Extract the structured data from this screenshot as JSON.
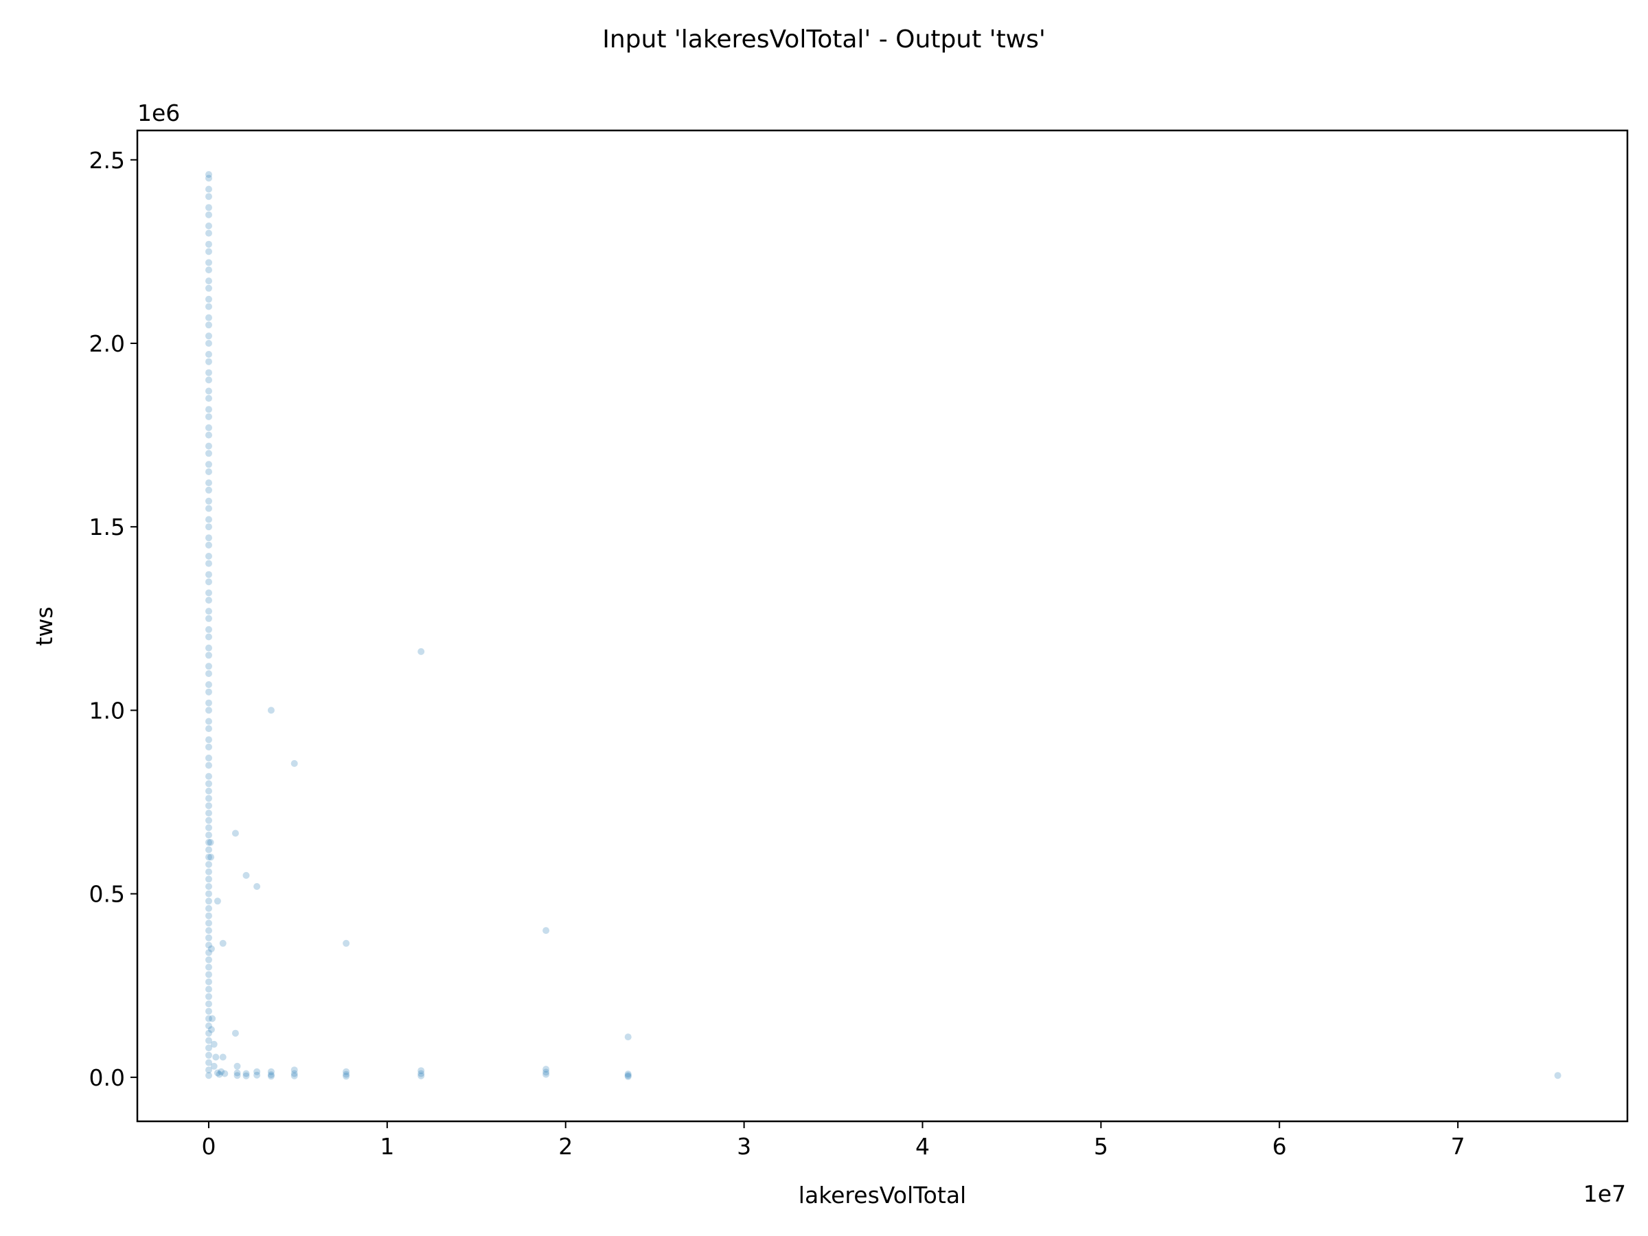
{
  "chart_data": {
    "type": "scatter",
    "title": "Input 'lakeresVolTotal' - Output 'tws'",
    "xlabel": "lakeresVolTotal",
    "ylabel": "tws",
    "x_offset_label": "1e7",
    "y_offset_label": "1e6",
    "xlim": [
      -4000000,
      79500000
    ],
    "ylim": [
      -120000,
      2580000
    ],
    "xticks": [
      0,
      10000000,
      20000000,
      30000000,
      40000000,
      50000000,
      60000000,
      70000000
    ],
    "xtick_labels": [
      "0",
      "1",
      "2",
      "3",
      "4",
      "5",
      "6",
      "7"
    ],
    "yticks": [
      0,
      500000,
      1000000,
      1500000,
      2000000,
      2500000
    ],
    "ytick_labels": [
      "0.0",
      "0.5",
      "1.0",
      "1.5",
      "2.0",
      "2.5"
    ],
    "grid": false,
    "marker_color": "#1f77b4",
    "marker_alpha": 0.25,
    "series": [
      {
        "points": [
          [
            0,
            2460000
          ],
          [
            0,
            2450000
          ],
          [
            0,
            2420000
          ],
          [
            0,
            2400000
          ],
          [
            0,
            2370000
          ],
          [
            0,
            2350000
          ],
          [
            0,
            2320000
          ],
          [
            0,
            2300000
          ],
          [
            0,
            2270000
          ],
          [
            0,
            2250000
          ],
          [
            0,
            2220000
          ],
          [
            0,
            2200000
          ],
          [
            0,
            2170000
          ],
          [
            0,
            2150000
          ],
          [
            0,
            2120000
          ],
          [
            0,
            2100000
          ],
          [
            0,
            2070000
          ],
          [
            0,
            2050000
          ],
          [
            0,
            2020000
          ],
          [
            0,
            2000000
          ],
          [
            0,
            1970000
          ],
          [
            0,
            1950000
          ],
          [
            0,
            1920000
          ],
          [
            0,
            1900000
          ],
          [
            0,
            1870000
          ],
          [
            0,
            1850000
          ],
          [
            0,
            1820000
          ],
          [
            0,
            1800000
          ],
          [
            0,
            1770000
          ],
          [
            0,
            1750000
          ],
          [
            0,
            1720000
          ],
          [
            0,
            1700000
          ],
          [
            0,
            1670000
          ],
          [
            0,
            1650000
          ],
          [
            0,
            1620000
          ],
          [
            0,
            1600000
          ],
          [
            0,
            1570000
          ],
          [
            0,
            1550000
          ],
          [
            0,
            1520000
          ],
          [
            0,
            1500000
          ],
          [
            0,
            1470000
          ],
          [
            0,
            1450000
          ],
          [
            0,
            1420000
          ],
          [
            0,
            1400000
          ],
          [
            0,
            1370000
          ],
          [
            0,
            1350000
          ],
          [
            0,
            1320000
          ],
          [
            0,
            1300000
          ],
          [
            0,
            1270000
          ],
          [
            0,
            1250000
          ],
          [
            0,
            1220000
          ],
          [
            0,
            1200000
          ],
          [
            0,
            1170000
          ],
          [
            0,
            1150000
          ],
          [
            0,
            1120000
          ],
          [
            0,
            1100000
          ],
          [
            0,
            1070000
          ],
          [
            0,
            1050000
          ],
          [
            0,
            1020000
          ],
          [
            0,
            1000000
          ],
          [
            0,
            970000
          ],
          [
            0,
            950000
          ],
          [
            0,
            920000
          ],
          [
            0,
            900000
          ],
          [
            0,
            870000
          ],
          [
            0,
            850000
          ],
          [
            0,
            820000
          ],
          [
            0,
            800000
          ],
          [
            0,
            780000
          ],
          [
            0,
            760000
          ],
          [
            0,
            740000
          ],
          [
            0,
            720000
          ],
          [
            0,
            700000
          ],
          [
            0,
            680000
          ],
          [
            0,
            660000
          ],
          [
            0,
            640000
          ],
          [
            0,
            620000
          ],
          [
            0,
            600000
          ],
          [
            0,
            580000
          ],
          [
            0,
            560000
          ],
          [
            0,
            540000
          ],
          [
            0,
            520000
          ],
          [
            0,
            500000
          ],
          [
            0,
            480000
          ],
          [
            0,
            460000
          ],
          [
            0,
            440000
          ],
          [
            0,
            420000
          ],
          [
            0,
            400000
          ],
          [
            0,
            380000
          ],
          [
            0,
            360000
          ],
          [
            0,
            340000
          ],
          [
            0,
            320000
          ],
          [
            0,
            300000
          ],
          [
            0,
            280000
          ],
          [
            0,
            260000
          ],
          [
            0,
            240000
          ],
          [
            0,
            220000
          ],
          [
            0,
            200000
          ],
          [
            0,
            180000
          ],
          [
            0,
            160000
          ],
          [
            0,
            140000
          ],
          [
            0,
            120000
          ],
          [
            0,
            100000
          ],
          [
            0,
            80000
          ],
          [
            0,
            60000
          ],
          [
            0,
            40000
          ],
          [
            0,
            20000
          ],
          [
            0,
            5000
          ],
          [
            100000,
            640000
          ],
          [
            120000,
            600000
          ],
          [
            150000,
            350000
          ],
          [
            200000,
            160000
          ],
          [
            150000,
            130000
          ],
          [
            300000,
            90000
          ],
          [
            400000,
            55000
          ],
          [
            800000,
            55000
          ],
          [
            300000,
            30000
          ],
          [
            500000,
            12000
          ],
          [
            600000,
            8000
          ],
          [
            700000,
            15000
          ],
          [
            900000,
            10000
          ],
          [
            500000,
            480000
          ],
          [
            800000,
            365000
          ],
          [
            1500000,
            665000
          ],
          [
            2100000,
            550000
          ],
          [
            2700000,
            520000
          ],
          [
            1500000,
            120000
          ],
          [
            1600000,
            30000
          ],
          [
            1600000,
            12000
          ],
          [
            1600000,
            5000
          ],
          [
            2100000,
            10000
          ],
          [
            2100000,
            4000
          ],
          [
            2700000,
            15000
          ],
          [
            2700000,
            6000
          ],
          [
            3500000,
            1000000
          ],
          [
            3500000,
            15000
          ],
          [
            3500000,
            7000
          ],
          [
            3500000,
            3000
          ],
          [
            4800000,
            855000
          ],
          [
            4800000,
            20000
          ],
          [
            4800000,
            10000
          ],
          [
            4800000,
            4000
          ],
          [
            7700000,
            365000
          ],
          [
            7700000,
            15000
          ],
          [
            7700000,
            8000
          ],
          [
            7700000,
            3000
          ],
          [
            11900000,
            1160000
          ],
          [
            11900000,
            18000
          ],
          [
            11900000,
            10000
          ],
          [
            11900000,
            4000
          ],
          [
            18900000,
            400000
          ],
          [
            18900000,
            22000
          ],
          [
            18900000,
            14000
          ],
          [
            18900000,
            8000
          ],
          [
            23500000,
            110000
          ],
          [
            23500000,
            9000
          ],
          [
            23500000,
            5000
          ],
          [
            23500000,
            2000
          ],
          [
            75600000,
            5000
          ]
        ]
      }
    ]
  }
}
